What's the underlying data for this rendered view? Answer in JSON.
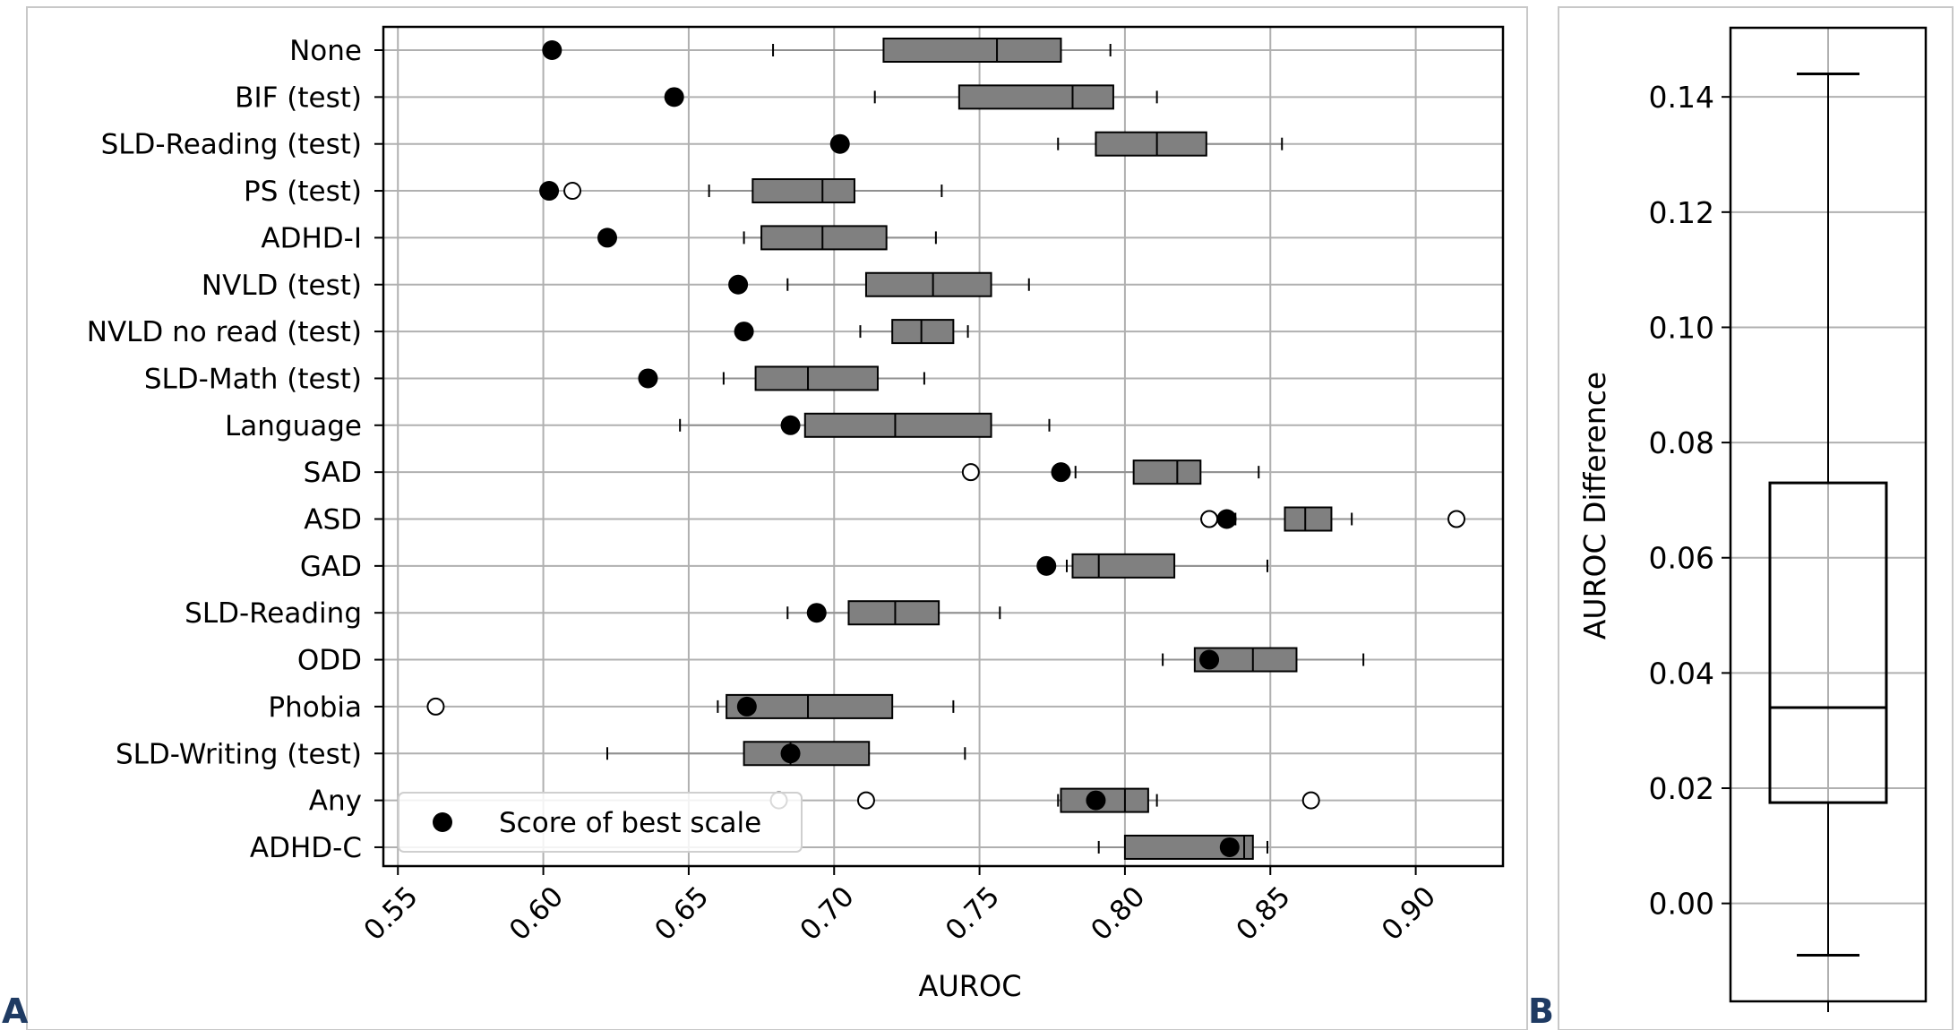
{
  "panels": {
    "a_label": "A",
    "b_label": "B"
  },
  "chart_data": [
    {
      "type": "boxplot",
      "orientation": "horizontal",
      "xlabel": "AUROC",
      "ylabel": "",
      "xlim": [
        0.545,
        0.93
      ],
      "xticks": [
        "0.55",
        "0.60",
        "0.65",
        "0.70",
        "0.75",
        "0.80",
        "0.85",
        "0.90"
      ],
      "grid": true,
      "box_color": "#808080",
      "legend": {
        "position": "bottom-left",
        "entries": [
          "Score of best scale"
        ]
      },
      "categories": [
        "None",
        "BIF (test)",
        "SLD-Reading (test)",
        "PS (test)",
        "ADHD-I",
        "NVLD (test)",
        "NVLD no read (test)",
        "SLD-Math (test)",
        "Language",
        "SAD",
        "ASD",
        "GAD",
        "SLD-Reading",
        "ODD",
        "Phobia",
        "SLD-Writing (test)",
        "Any",
        "ADHD-C"
      ],
      "boxes": [
        {
          "category": "None",
          "whisker_low": 0.679,
          "q1": 0.717,
          "median": 0.756,
          "q3": 0.778,
          "whisker_high": 0.795,
          "outliers": [],
          "best_scale": 0.603
        },
        {
          "category": "BIF (test)",
          "whisker_low": 0.714,
          "q1": 0.743,
          "median": 0.782,
          "q3": 0.796,
          "whisker_high": 0.811,
          "outliers": [],
          "best_scale": 0.645
        },
        {
          "category": "SLD-Reading (test)",
          "whisker_low": 0.777,
          "q1": 0.79,
          "median": 0.811,
          "q3": 0.828,
          "whisker_high": 0.854,
          "outliers": [],
          "best_scale": 0.702
        },
        {
          "category": "PS (test)",
          "whisker_low": 0.657,
          "q1": 0.672,
          "median": 0.696,
          "q3": 0.707,
          "whisker_high": 0.737,
          "outliers": [
            0.61
          ],
          "best_scale": 0.602
        },
        {
          "category": "ADHD-I",
          "whisker_low": 0.669,
          "q1": 0.675,
          "median": 0.696,
          "q3": 0.718,
          "whisker_high": 0.735,
          "outliers": [],
          "best_scale": 0.622
        },
        {
          "category": "NVLD (test)",
          "whisker_low": 0.684,
          "q1": 0.711,
          "median": 0.734,
          "q3": 0.754,
          "whisker_high": 0.767,
          "outliers": [],
          "best_scale": 0.667
        },
        {
          "category": "NVLD no read (test)",
          "whisker_low": 0.709,
          "q1": 0.72,
          "median": 0.73,
          "q3": 0.741,
          "whisker_high": 0.746,
          "outliers": [],
          "best_scale": 0.669
        },
        {
          "category": "SLD-Math (test)",
          "whisker_low": 0.662,
          "q1": 0.673,
          "median": 0.691,
          "q3": 0.715,
          "whisker_high": 0.731,
          "outliers": [],
          "best_scale": 0.636
        },
        {
          "category": "Language",
          "whisker_low": 0.647,
          "q1": 0.69,
          "median": 0.721,
          "q3": 0.754,
          "whisker_high": 0.774,
          "outliers": [],
          "best_scale": 0.685
        },
        {
          "category": "SAD",
          "whisker_low": 0.783,
          "q1": 0.803,
          "median": 0.818,
          "q3": 0.826,
          "whisker_high": 0.846,
          "outliers": [
            0.747
          ],
          "best_scale": 0.778
        },
        {
          "category": "ASD",
          "whisker_low": 0.838,
          "q1": 0.855,
          "median": 0.862,
          "q3": 0.871,
          "whisker_high": 0.878,
          "outliers": [
            0.829,
            0.914
          ],
          "best_scale": 0.835
        },
        {
          "category": "GAD",
          "whisker_low": 0.78,
          "q1": 0.782,
          "median": 0.791,
          "q3": 0.817,
          "whisker_high": 0.849,
          "outliers": [],
          "best_scale": 0.773
        },
        {
          "category": "SLD-Reading",
          "whisker_low": 0.684,
          "q1": 0.705,
          "median": 0.721,
          "q3": 0.736,
          "whisker_high": 0.757,
          "outliers": [],
          "best_scale": 0.694
        },
        {
          "category": "ODD",
          "whisker_low": 0.813,
          "q1": 0.824,
          "median": 0.844,
          "q3": 0.859,
          "whisker_high": 0.882,
          "outliers": [],
          "best_scale": 0.829
        },
        {
          "category": "Phobia",
          "whisker_low": 0.66,
          "q1": 0.663,
          "median": 0.691,
          "q3": 0.72,
          "whisker_high": 0.741,
          "outliers": [
            0.563
          ],
          "best_scale": 0.67
        },
        {
          "category": "SLD-Writing (test)",
          "whisker_low": 0.622,
          "q1": 0.669,
          "median": 0.685,
          "q3": 0.712,
          "whisker_high": 0.745,
          "outliers": [],
          "best_scale": 0.685
        },
        {
          "category": "Any",
          "whisker_low": 0.777,
          "q1": 0.778,
          "median": 0.8,
          "q3": 0.808,
          "whisker_high": 0.811,
          "outliers": [
            0.681,
            0.711,
            0.864
          ],
          "best_scale": 0.79
        },
        {
          "category": "ADHD-C",
          "whisker_low": 0.791,
          "q1": 0.8,
          "median": 0.841,
          "q3": 0.844,
          "whisker_high": 0.849,
          "outliers": [],
          "best_scale": 0.836
        }
      ]
    },
    {
      "type": "boxplot",
      "orientation": "vertical",
      "xlabel": "",
      "ylabel": "AUROC Difference",
      "ylim": [
        -0.017,
        0.152
      ],
      "yticks": [
        "0.00",
        "0.02",
        "0.04",
        "0.06",
        "0.08",
        "0.10",
        "0.12",
        "0.14"
      ],
      "grid": true,
      "box": {
        "whisker_low": -0.009,
        "q1": 0.0175,
        "median": 0.034,
        "q3": 0.073,
        "whisker_high": 0.144
      }
    }
  ]
}
